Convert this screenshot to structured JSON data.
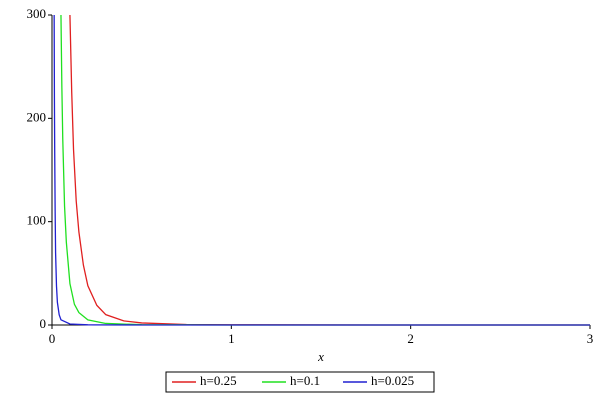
{
  "chart_data": {
    "type": "line",
    "xlabel": "x",
    "series": [
      {
        "name": "h=0.25",
        "color": "#e02020",
        "x": [
          0.1,
          0.11,
          0.12,
          0.135,
          0.15,
          0.175,
          0.2,
          0.25,
          0.3,
          0.4,
          0.5,
          0.75,
          1,
          2,
          3
        ],
        "values": [
          300,
          225,
          170,
          120,
          90,
          58,
          38,
          19,
          10,
          4,
          2,
          0.5,
          0.2,
          0,
          0
        ]
      },
      {
        "name": "h=0.1",
        "color": "#20e020",
        "x": [
          0.05,
          0.055,
          0.06,
          0.07,
          0.08,
          0.1,
          0.125,
          0.15,
          0.2,
          0.3,
          0.5,
          1,
          3
        ],
        "values": [
          300,
          230,
          180,
          115,
          80,
          40,
          20,
          12,
          5,
          1.5,
          0.3,
          0,
          0
        ]
      },
      {
        "name": "h=0.025",
        "color": "#2020d0",
        "x": [
          0.012,
          0.0135,
          0.015,
          0.0175,
          0.02,
          0.025,
          0.03,
          0.04,
          0.05,
          0.1,
          0.2,
          0.5,
          3
        ],
        "values": [
          300,
          220,
          170,
          110,
          70,
          38,
          22,
          10,
          5,
          1,
          0.2,
          0,
          0
        ]
      }
    ],
    "xlim": [
      0,
      3
    ],
    "ylim": [
      0,
      300
    ],
    "xticks": [
      0,
      1,
      2,
      3
    ],
    "yticks": [
      0,
      100,
      200,
      300
    ]
  }
}
